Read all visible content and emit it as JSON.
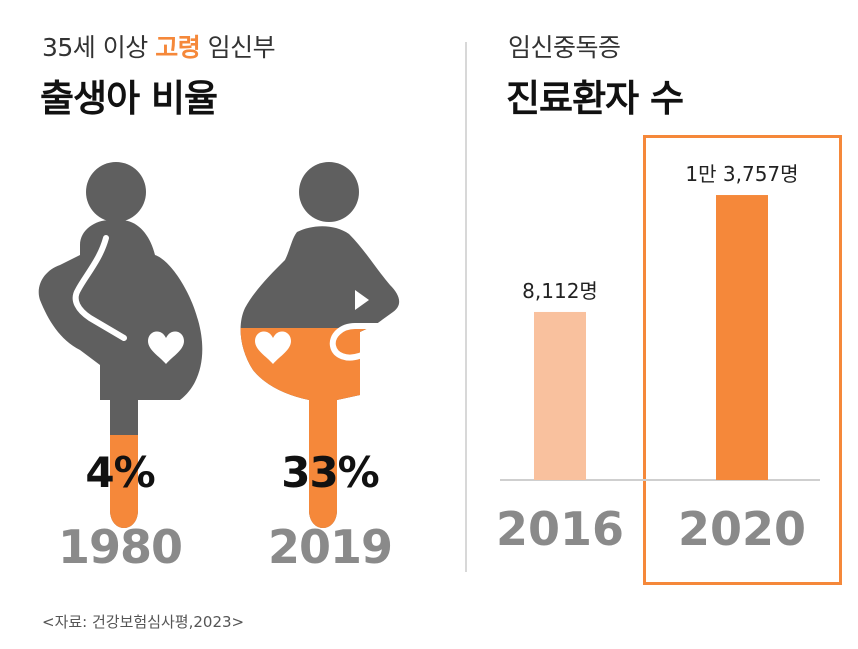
{
  "left_panel": {
    "subtitle_pre": "35세 이상 ",
    "subtitle_highlight": "고령",
    "subtitle_post": " 임신부",
    "title": "출생아 비율",
    "figures": [
      {
        "year": "1980",
        "percent_label": "4%",
        "value": 4
      },
      {
        "year": "2019",
        "percent_label": "33%",
        "value": 33
      }
    ],
    "icon": "pregnant-woman-heart-icon"
  },
  "right_panel": {
    "subtitle": "임신중독증",
    "title": "진료환자 수",
    "highlighted_year": "2020"
  },
  "colors": {
    "accent": "#f5883a",
    "accent_light": "#f9c19e",
    "figure_gray": "#5f5f5f",
    "year_gray": "#8a8a8a"
  },
  "chart_data": [
    {
      "type": "bar",
      "categories": [
        "1980",
        "2019"
      ],
      "values": [
        4,
        33
      ],
      "value_labels": [
        "4%",
        "33%"
      ],
      "unit": "%",
      "title": "35세 이상 고령 임신부 출생아 비율"
    },
    {
      "type": "bar",
      "categories": [
        "2016",
        "2020"
      ],
      "values": [
        8112,
        13757
      ],
      "value_labels": [
        "8,112명",
        "1만 3,757명"
      ],
      "unit": "명",
      "title": "임신중독증 진료환자 수"
    }
  ],
  "source": "<자료: 건강보험심사평,2023>"
}
